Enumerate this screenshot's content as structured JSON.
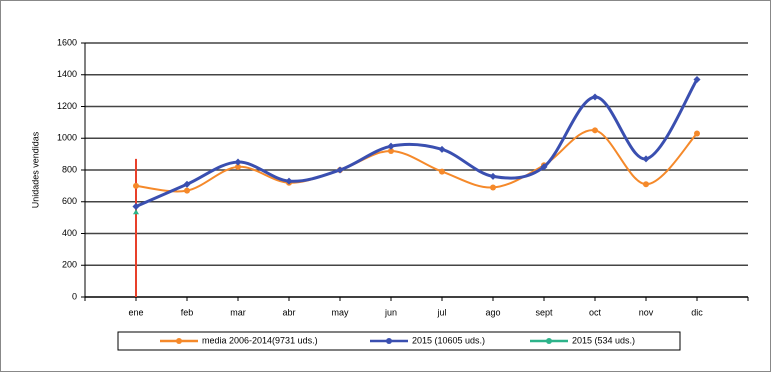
{
  "chart_data": {
    "type": "line",
    "y_label": "Unidades vendidas",
    "categories": [
      "ene",
      "feb",
      "mar",
      "abr",
      "may",
      "jun",
      "jul",
      "ago",
      "sept",
      "oct",
      "nov",
      "dic"
    ],
    "ylim": [
      0,
      1600
    ],
    "yticks": [
      0,
      200,
      400,
      600,
      800,
      1000,
      1200,
      1400,
      1600
    ],
    "grid": true,
    "smooth": true,
    "series": [
      {
        "name": "media 2006-2014(9731 uds.)",
        "color": "#f5892a",
        "values": [
          700,
          670,
          820,
          720,
          800,
          920,
          790,
          690,
          830,
          1050,
          710,
          1030
        ]
      },
      {
        "name": "2015 (10605 uds.)",
        "color": "#3a4fb0",
        "values": [
          570,
          710,
          850,
          730,
          800,
          950,
          930,
          760,
          820,
          1260,
          870,
          1370
        ]
      },
      {
        "name": "2015 (534 uds.)",
        "color": "#2db38a",
        "values": [
          534,
          null,
          null,
          null,
          null,
          null,
          null,
          null,
          null,
          null,
          null,
          null
        ]
      }
    ]
  }
}
